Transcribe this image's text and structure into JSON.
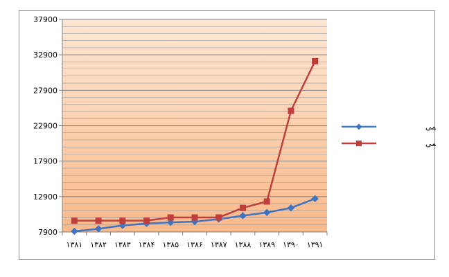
{
  "chart_data": {
    "type": "line",
    "title": "",
    "xlabel": "",
    "ylabel": "",
    "categories": [
      "۱۳۸۱",
      "۱۳۸۲",
      "۱۳۸۳",
      "۱۳۸۴",
      "۱۳۸۵",
      "۱۳۸۶",
      "۱۳۸۷",
      "۱۳۸۸",
      "۱۳۸۹",
      "۱۳۹۰",
      "۱۳۹۱"
    ],
    "y_ticks": [
      7900,
      12900,
      17900,
      22900,
      27900,
      32900,
      37900
    ],
    "y_tick_labels": [
      "7900",
      "12900",
      "17900",
      "22900",
      "27900",
      "32900",
      "37900"
    ],
    "ylim": [
      7900,
      37900
    ],
    "grid": true,
    "minor_grid_step": 1000,
    "background_gradient": [
      "#fde7d4",
      "#f9b98a"
    ],
    "legend_position": "right",
    "series": [
      {
        "name": "نرخ ارز رسمی",
        "color": "#3e74c0",
        "marker": "diamond",
        "values": [
          8000,
          8350,
          8820,
          9100,
          9250,
          9360,
          9720,
          10200,
          10650,
          11300,
          12600
        ]
      },
      {
        "name": "نرخ ارز غیر رسمی",
        "color": "#bf3f3c",
        "marker": "square",
        "values": [
          9500,
          9500,
          9500,
          9500,
          9950,
          9950,
          9950,
          11300,
          12200,
          25000,
          32000
        ]
      }
    ]
  }
}
